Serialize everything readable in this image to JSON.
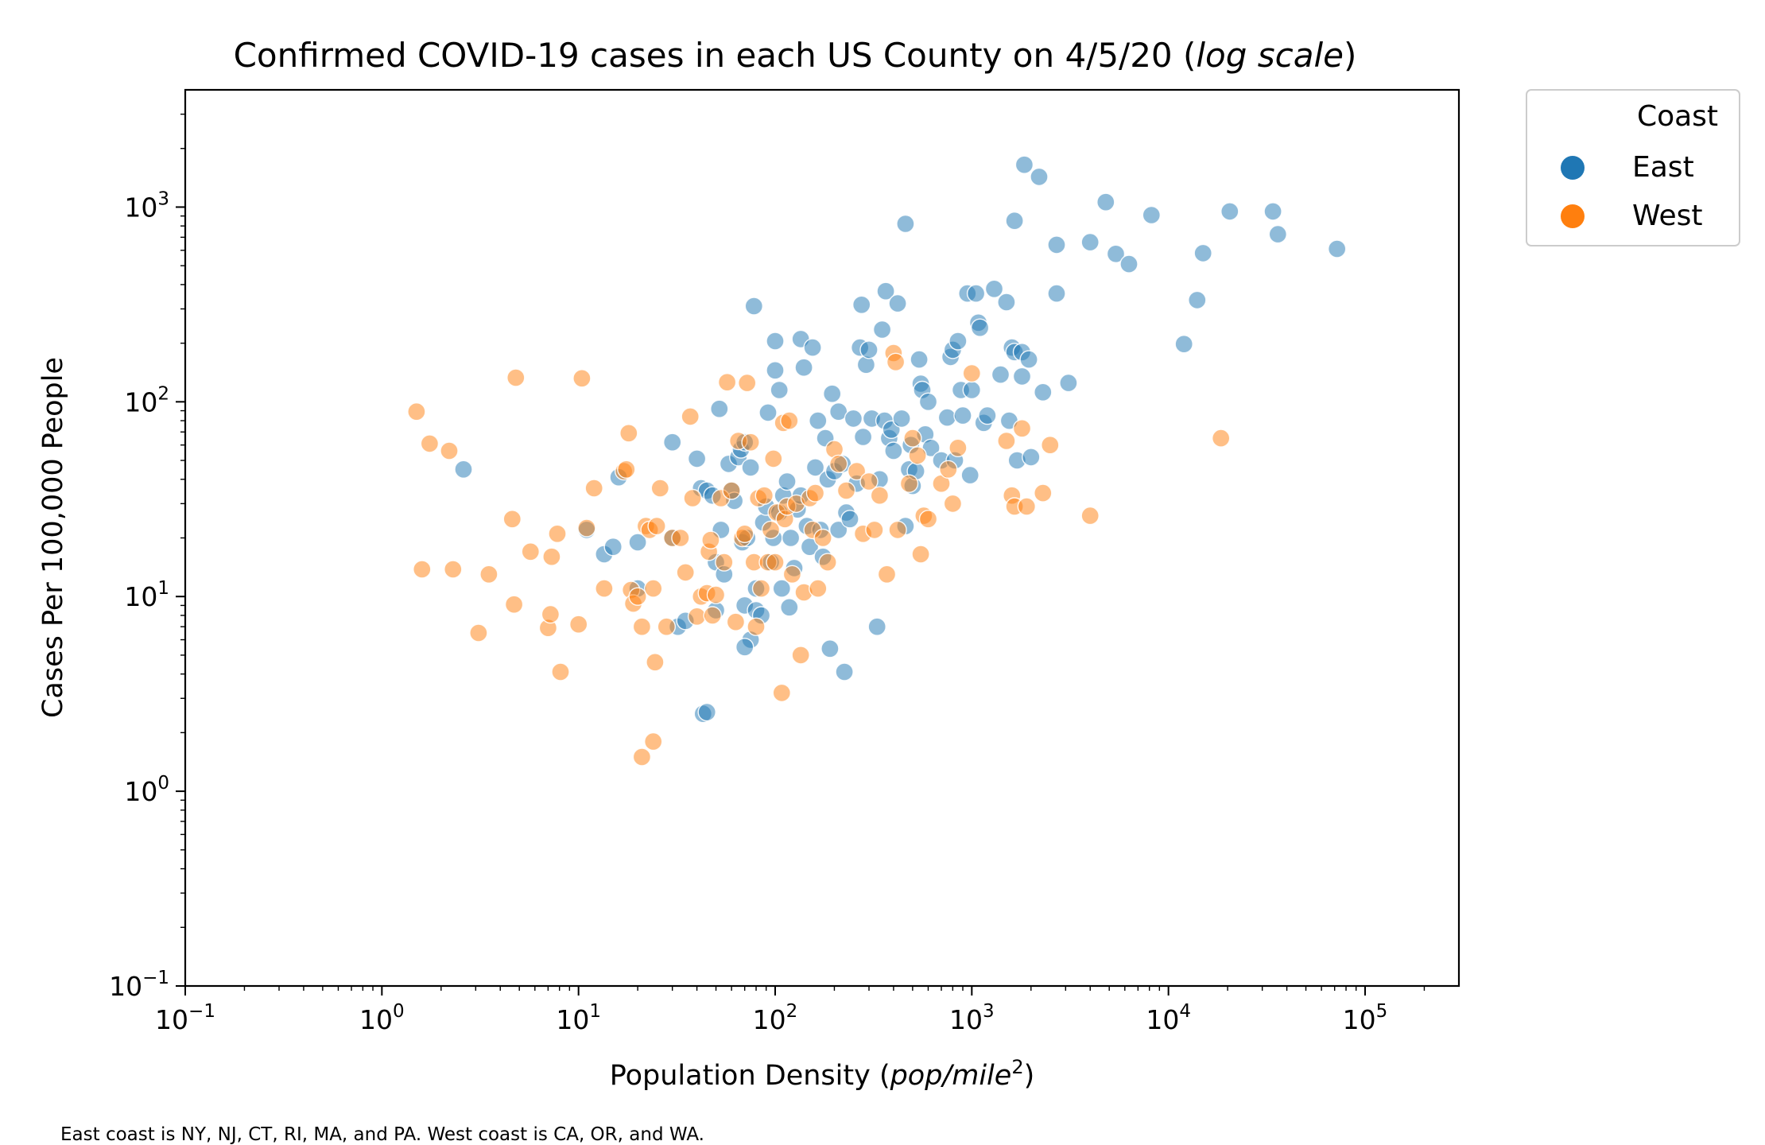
{
  "chart_data": {
    "type": "scatter",
    "title": "Confirmed COVID-19 cases in each US County on 4/5/20",
    "title_suffix": "log scale",
    "xlabel": "Population Density",
    "xlabel_unit": "pop/mile",
    "xlabel_unit_exponent": "2",
    "ylabel": "Cases Per 100,000 People",
    "xscale": "log",
    "yscale": "log",
    "xlim": [
      0.1,
      300000
    ],
    "ylim": [
      0.1,
      4000
    ],
    "x_ticks": [
      0.1,
      1,
      10,
      100,
      1000,
      10000,
      100000
    ],
    "x_tick_labels": [
      [
        "10",
        "−1"
      ],
      [
        "10",
        "0"
      ],
      [
        "10",
        "1"
      ],
      [
        "10",
        "2"
      ],
      [
        "10",
        "3"
      ],
      [
        "10",
        "4"
      ],
      [
        "10",
        "5"
      ]
    ],
    "y_ticks": [
      0.1,
      1,
      10,
      100,
      1000
    ],
    "y_tick_labels": [
      [
        "10",
        "−1"
      ],
      [
        "10",
        "0"
      ],
      [
        "10",
        "1"
      ],
      [
        "10",
        "2"
      ],
      [
        "10",
        "3"
      ]
    ],
    "grid": false,
    "legend": {
      "title": "Coast",
      "placement": "outside-top-right",
      "entries": [
        {
          "label": "East",
          "color": "#1f77b4"
        },
        {
          "label": "West",
          "color": "#ff7f0e"
        }
      ]
    },
    "marker_alpha": 0.5,
    "series": [
      {
        "name": "East",
        "color": "#1f77b4",
        "points": [
          [
            2.6,
            45
          ],
          [
            16,
            41
          ],
          [
            11,
            22
          ],
          [
            13.5,
            16.5
          ],
          [
            15,
            18
          ],
          [
            20,
            19
          ],
          [
            20,
            11
          ],
          [
            30,
            62
          ],
          [
            32,
            7
          ],
          [
            35,
            7.5
          ],
          [
            30,
            20
          ],
          [
            40,
            51
          ],
          [
            42,
            36
          ],
          [
            43,
            2.5
          ],
          [
            45,
            2.55
          ],
          [
            45,
            35
          ],
          [
            50,
            15
          ],
          [
            50,
            8.5
          ],
          [
            48,
            33
          ],
          [
            52,
            92
          ],
          [
            53,
            22
          ],
          [
            55,
            13
          ],
          [
            58,
            48
          ],
          [
            60,
            35
          ],
          [
            62,
            31
          ],
          [
            65,
            52
          ],
          [
            67,
            57
          ],
          [
            68,
            19
          ],
          [
            70,
            62
          ],
          [
            72,
            20
          ],
          [
            75,
            46
          ],
          [
            78,
            310
          ],
          [
            75,
            6
          ],
          [
            70,
            5.5
          ],
          [
            70,
            9
          ],
          [
            80,
            11
          ],
          [
            80,
            8.5
          ],
          [
            85,
            8
          ],
          [
            87,
            24
          ],
          [
            90,
            29
          ],
          [
            92,
            88
          ],
          [
            95,
            15
          ],
          [
            98,
            20
          ],
          [
            100,
            145
          ],
          [
            100,
            205
          ],
          [
            105,
            115
          ],
          [
            105,
            27
          ],
          [
            108,
            11
          ],
          [
            110,
            33
          ],
          [
            115,
            39
          ],
          [
            118,
            8.8
          ],
          [
            120,
            20
          ],
          [
            125,
            14
          ],
          [
            130,
            28
          ],
          [
            135,
            33
          ],
          [
            135,
            210
          ],
          [
            140,
            150
          ],
          [
            145,
            23
          ],
          [
            150,
            18
          ],
          [
            155,
            190
          ],
          [
            160,
            46
          ],
          [
            165,
            80
          ],
          [
            170,
            22
          ],
          [
            175,
            16
          ],
          [
            180,
            65
          ],
          [
            185,
            40
          ],
          [
            190,
            5.4
          ],
          [
            195,
            110
          ],
          [
            200,
            44
          ],
          [
            210,
            22
          ],
          [
            210,
            89
          ],
          [
            220,
            48
          ],
          [
            225,
            4.1
          ],
          [
            230,
            27
          ],
          [
            240,
            25
          ],
          [
            250,
            82
          ],
          [
            260,
            38
          ],
          [
            270,
            190
          ],
          [
            275,
            315
          ],
          [
            280,
            66
          ],
          [
            290,
            155
          ],
          [
            300,
            185
          ],
          [
            310,
            82
          ],
          [
            330,
            7
          ],
          [
            340,
            40
          ],
          [
            350,
            235
          ],
          [
            360,
            80
          ],
          [
            365,
            370
          ],
          [
            380,
            65
          ],
          [
            390,
            72
          ],
          [
            400,
            56
          ],
          [
            420,
            320
          ],
          [
            440,
            82
          ],
          [
            460,
            820
          ],
          [
            460,
            23
          ],
          [
            480,
            45
          ],
          [
            490,
            60
          ],
          [
            500,
            37
          ],
          [
            520,
            44
          ],
          [
            540,
            165
          ],
          [
            550,
            124
          ],
          [
            560,
            115
          ],
          [
            580,
            68
          ],
          [
            600,
            100
          ],
          [
            620,
            58
          ],
          [
            700,
            50
          ],
          [
            750,
            83
          ],
          [
            780,
            170
          ],
          [
            800,
            185
          ],
          [
            820,
            50
          ],
          [
            850,
            205
          ],
          [
            880,
            115
          ],
          [
            900,
            85
          ],
          [
            950,
            360
          ],
          [
            980,
            42
          ],
          [
            1000,
            115
          ],
          [
            1050,
            360
          ],
          [
            1080,
            255
          ],
          [
            1100,
            240
          ],
          [
            1150,
            78
          ],
          [
            1200,
            85
          ],
          [
            1300,
            380
          ],
          [
            1400,
            138
          ],
          [
            1500,
            325
          ],
          [
            1550,
            80
          ],
          [
            1600,
            190
          ],
          [
            1650,
            850
          ],
          [
            1650,
            180
          ],
          [
            1700,
            50
          ],
          [
            1800,
            135
          ],
          [
            1800,
            180
          ],
          [
            1850,
            1650
          ],
          [
            1950,
            165
          ],
          [
            2000,
            52
          ],
          [
            2200,
            1430
          ],
          [
            2300,
            112
          ],
          [
            2700,
            360
          ],
          [
            2700,
            640
          ],
          [
            3100,
            125
          ],
          [
            4000,
            660
          ],
          [
            4800,
            1060
          ],
          [
            5400,
            575
          ],
          [
            6300,
            510
          ],
          [
            8200,
            910
          ],
          [
            12000,
            198
          ],
          [
            14000,
            333
          ],
          [
            15000,
            580
          ],
          [
            20500,
            950
          ],
          [
            34000,
            950
          ],
          [
            36000,
            725
          ],
          [
            72000,
            610
          ]
        ]
      },
      {
        "name": "West",
        "color": "#ff7f0e",
        "points": [
          [
            1.5,
            89
          ],
          [
            1.6,
            13.8
          ],
          [
            1.75,
            61
          ],
          [
            2.2,
            56
          ],
          [
            2.3,
            13.8
          ],
          [
            3.1,
            6.5
          ],
          [
            3.5,
            13
          ],
          [
            4.6,
            25
          ],
          [
            4.7,
            9.1
          ],
          [
            4.8,
            133
          ],
          [
            5.7,
            17
          ],
          [
            7,
            6.9
          ],
          [
            7.2,
            8.1
          ],
          [
            7.3,
            16
          ],
          [
            7.8,
            21
          ],
          [
            8.1,
            4.1
          ],
          [
            10,
            7.2
          ],
          [
            10.4,
            132
          ],
          [
            11,
            22.5
          ],
          [
            12,
            36
          ],
          [
            13.5,
            11
          ],
          [
            17,
            44
          ],
          [
            17.5,
            45
          ],
          [
            18,
            69
          ],
          [
            18.5,
            10.8
          ],
          [
            19,
            9.2
          ],
          [
            20,
            10
          ],
          [
            21,
            7
          ],
          [
            21,
            1.5
          ],
          [
            22,
            23
          ],
          [
            23,
            22
          ],
          [
            24,
            1.8
          ],
          [
            24,
            11
          ],
          [
            24.5,
            4.6
          ],
          [
            25,
            23
          ],
          [
            26,
            36
          ],
          [
            28,
            7
          ],
          [
            30,
            20
          ],
          [
            33,
            20
          ],
          [
            35,
            13.3
          ],
          [
            37,
            84
          ],
          [
            38,
            32
          ],
          [
            40,
            7.9
          ],
          [
            42,
            10
          ],
          [
            45,
            10.4
          ],
          [
            46,
            17
          ],
          [
            47,
            19.5
          ],
          [
            48,
            8
          ],
          [
            50,
            10.2
          ],
          [
            53,
            32
          ],
          [
            55,
            15
          ],
          [
            57,
            126
          ],
          [
            60,
            35
          ],
          [
            63,
            7.4
          ],
          [
            65,
            63
          ],
          [
            68,
            20
          ],
          [
            70,
            21
          ],
          [
            72,
            125
          ],
          [
            75,
            62
          ],
          [
            78,
            15
          ],
          [
            80,
            7
          ],
          [
            82,
            32
          ],
          [
            85,
            11
          ],
          [
            88,
            33
          ],
          [
            92,
            15
          ],
          [
            95,
            22
          ],
          [
            98,
            51
          ],
          [
            100,
            15
          ],
          [
            102,
            27
          ],
          [
            108,
            3.2
          ],
          [
            110,
            78
          ],
          [
            112,
            25
          ],
          [
            115,
            29
          ],
          [
            118,
            80
          ],
          [
            122,
            13
          ],
          [
            128,
            30
          ],
          [
            135,
            5
          ],
          [
            140,
            10.5
          ],
          [
            150,
            32
          ],
          [
            155,
            22
          ],
          [
            160,
            34
          ],
          [
            165,
            11
          ],
          [
            175,
            20
          ],
          [
            185,
            15
          ],
          [
            200,
            57
          ],
          [
            210,
            48
          ],
          [
            230,
            35
          ],
          [
            260,
            44
          ],
          [
            280,
            21
          ],
          [
            300,
            39
          ],
          [
            320,
            22
          ],
          [
            340,
            33
          ],
          [
            370,
            13
          ],
          [
            400,
            178
          ],
          [
            410,
            160
          ],
          [
            420,
            22
          ],
          [
            480,
            38
          ],
          [
            500,
            65
          ],
          [
            530,
            53
          ],
          [
            550,
            16.5
          ],
          [
            570,
            26
          ],
          [
            600,
            25
          ],
          [
            700,
            38
          ],
          [
            760,
            45
          ],
          [
            800,
            30
          ],
          [
            850,
            58
          ],
          [
            1000,
            140
          ],
          [
            1500,
            63
          ],
          [
            1600,
            33
          ],
          [
            1650,
            29
          ],
          [
            1800,
            73
          ],
          [
            1900,
            29
          ],
          [
            2300,
            34
          ],
          [
            2500,
            60
          ],
          [
            4000,
            26
          ],
          [
            18500,
            65
          ]
        ]
      }
    ],
    "footnote": "East coast is NY, NJ, CT, RI, MA, and PA. West coast is CA, OR, and WA."
  }
}
